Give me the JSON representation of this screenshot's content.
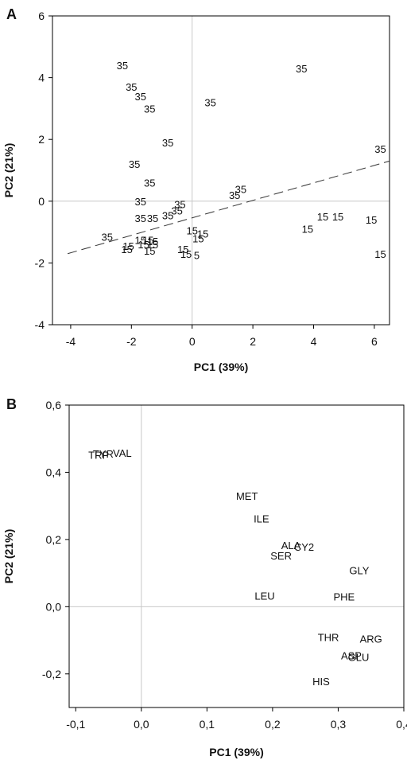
{
  "chart_data": [
    {
      "panel": "A",
      "type": "scatter",
      "xlabel": "PC1 (39%)",
      "ylabel": "PC2 (21%)",
      "xlim": [
        -4.6,
        6.5
      ],
      "ylim": [
        -4,
        6
      ],
      "xticks": [
        "-4",
        "-2",
        "0",
        "2",
        "4",
        "6"
      ],
      "yticks": [
        "-4",
        "-2",
        "0",
        "2",
        "4",
        "6"
      ],
      "reference_lines": {
        "x": 0,
        "y": 0
      },
      "trend_line": {
        "style": "dashed",
        "from": [
          -4.1,
          -1.7
        ],
        "to": [
          6.5,
          1.3
        ]
      },
      "points": [
        {
          "x": -2.3,
          "y": 4.4,
          "label": "35"
        },
        {
          "x": 3.6,
          "y": 4.3,
          "label": "35"
        },
        {
          "x": -2.0,
          "y": 3.7,
          "label": "35"
        },
        {
          "x": -1.7,
          "y": 3.4,
          "label": "35"
        },
        {
          "x": 0.6,
          "y": 3.2,
          "label": "35"
        },
        {
          "x": -1.4,
          "y": 3.0,
          "label": "35"
        },
        {
          "x": -0.8,
          "y": 1.9,
          "label": "35"
        },
        {
          "x": 6.2,
          "y": 1.7,
          "label": "35"
        },
        {
          "x": -1.9,
          "y": 1.2,
          "label": "35"
        },
        {
          "x": -1.4,
          "y": 0.6,
          "label": "35"
        },
        {
          "x": 1.6,
          "y": 0.4,
          "label": "35"
        },
        {
          "x": 1.4,
          "y": 0.2,
          "label": "35"
        },
        {
          "x": -1.7,
          "y": 0.0,
          "label": "35"
        },
        {
          "x": -0.4,
          "y": -0.1,
          "label": "35"
        },
        {
          "x": -0.5,
          "y": -0.3,
          "label": "35"
        },
        {
          "x": -0.8,
          "y": -0.45,
          "label": "35"
        },
        {
          "x": -1.7,
          "y": -0.55,
          "label": "35"
        },
        {
          "x": -1.3,
          "y": -0.55,
          "label": "35"
        },
        {
          "x": -2.8,
          "y": -1.15,
          "label": "35"
        },
        {
          "x": 4.3,
          "y": -0.5,
          "label": "15"
        },
        {
          "x": 4.8,
          "y": -0.5,
          "label": "15"
        },
        {
          "x": 5.9,
          "y": -0.6,
          "label": "15"
        },
        {
          "x": 3.8,
          "y": -0.9,
          "label": "15"
        },
        {
          "x": 6.2,
          "y": -1.7,
          "label": "15"
        },
        {
          "x": 0.0,
          "y": -0.95,
          "label": "15"
        },
        {
          "x": 0.35,
          "y": -1.05,
          "label": "15"
        },
        {
          "x": 0.2,
          "y": -1.2,
          "label": "15"
        },
        {
          "x": -1.7,
          "y": -1.25,
          "label": "15"
        },
        {
          "x": -1.45,
          "y": -1.25,
          "label": "15"
        },
        {
          "x": -1.3,
          "y": -1.3,
          "label": "15"
        },
        {
          "x": -1.6,
          "y": -1.4,
          "label": "15"
        },
        {
          "x": -1.3,
          "y": -1.4,
          "label": "15"
        },
        {
          "x": -2.1,
          "y": -1.45,
          "label": "15"
        },
        {
          "x": -2.15,
          "y": -1.55,
          "label": "15"
        },
        {
          "x": -1.4,
          "y": -1.6,
          "label": "15"
        },
        {
          "x": -0.3,
          "y": -1.55,
          "label": "15"
        },
        {
          "x": -0.2,
          "y": -1.7,
          "label": "15"
        },
        {
          "x": 0.15,
          "y": -1.75,
          "label": "5"
        }
      ]
    },
    {
      "panel": "B",
      "type": "scatter",
      "xlabel": "PC1 (39%)",
      "ylabel": "PC2 (21%)",
      "xlim": [
        -0.11,
        0.4
      ],
      "ylim": [
        -0.3,
        0.6
      ],
      "xticks": [
        "-0,1",
        "0,0",
        "0,1",
        "0,2",
        "0,3",
        "0,4"
      ],
      "yticks": [
        "-0,2",
        "0,0",
        "0,2",
        "0,4",
        "0,6"
      ],
      "reference_lines": {
        "x": 0,
        "y": 0
      },
      "points": [
        {
          "x": -0.058,
          "y": 0.455,
          "label": "TYR"
        },
        {
          "x": -0.065,
          "y": 0.452,
          "label": "TRP"
        },
        {
          "x": -0.029,
          "y": 0.458,
          "label": "VAL"
        },
        {
          "x": 0.161,
          "y": 0.33,
          "label": "MET"
        },
        {
          "x": 0.183,
          "y": 0.262,
          "label": "ILE"
        },
        {
          "x": 0.228,
          "y": 0.183,
          "label": "ALA"
        },
        {
          "x": 0.248,
          "y": 0.178,
          "label": "CY2"
        },
        {
          "x": 0.213,
          "y": 0.152,
          "label": "SER"
        },
        {
          "x": 0.332,
          "y": 0.108,
          "label": "GLY"
        },
        {
          "x": 0.188,
          "y": 0.033,
          "label": "LEU"
        },
        {
          "x": 0.309,
          "y": 0.03,
          "label": "PHE"
        },
        {
          "x": 0.285,
          "y": -0.09,
          "label": "THR"
        },
        {
          "x": 0.35,
          "y": -0.095,
          "label": "ARG"
        },
        {
          "x": 0.32,
          "y": -0.145,
          "label": "ASP"
        },
        {
          "x": 0.331,
          "y": -0.15,
          "label": "GLU"
        },
        {
          "x": 0.274,
          "y": -0.222,
          "label": "HIS"
        }
      ]
    }
  ]
}
